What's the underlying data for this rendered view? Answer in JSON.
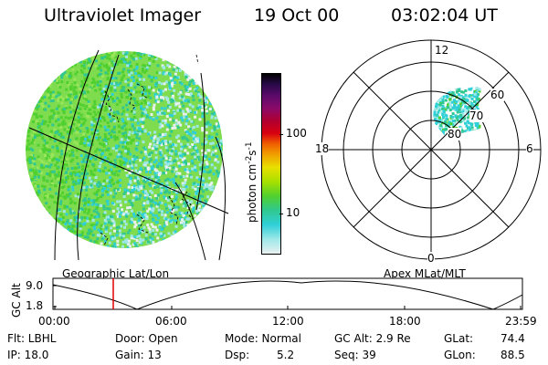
{
  "header": {
    "instrument": "Ultraviolet Imager",
    "date": "19 Oct 00",
    "time": "03:02:04 UT"
  },
  "colorbar": {
    "label_main": "photon cm",
    "label_sup1": "-2",
    "label_mid": "s",
    "label_sup2": "-1",
    "ticks": [
      "100",
      "10"
    ],
    "colors": [
      "#000000",
      "#2a0a4a",
      "#5a0a6a",
      "#8a0a6a",
      "#b00030",
      "#d80010",
      "#f06000",
      "#f0a000",
      "#e8e000",
      "#a8e000",
      "#50d030",
      "#30c890",
      "#30d0d8",
      "#a0e8e8",
      "#e8f0f0"
    ]
  },
  "geo_panel": {
    "label": "Geographic Lat/Lon"
  },
  "polar_panel": {
    "label": "Apex MLat/MLT",
    "mlt_labels": [
      "12",
      "18",
      "6",
      "0"
    ],
    "mlat_labels": [
      "60",
      "70",
      "80"
    ]
  },
  "altitude_plot": {
    "ylabel": "GC Alt",
    "yticks": [
      "9.0",
      "1.8"
    ],
    "xticks": [
      "00:00",
      "06:00",
      "12:00",
      "18:00",
      "23:59"
    ],
    "marker_time": "03:02"
  },
  "status": {
    "flt": "Flt: LBHL",
    "ip": "IP: 18.0",
    "door": "Door: Open",
    "gain": "Gain: 13",
    "mode": "Mode: Normal",
    "dsp_label": "Dsp:",
    "dsp_value": "5.2",
    "gc_alt": "GC Alt: 2.9 Re",
    "seq": "Seq: 39",
    "glat_label": "GLat:",
    "glat_value": "74.4",
    "glon_label": "GLon:",
    "glon_value": "88.5"
  }
}
